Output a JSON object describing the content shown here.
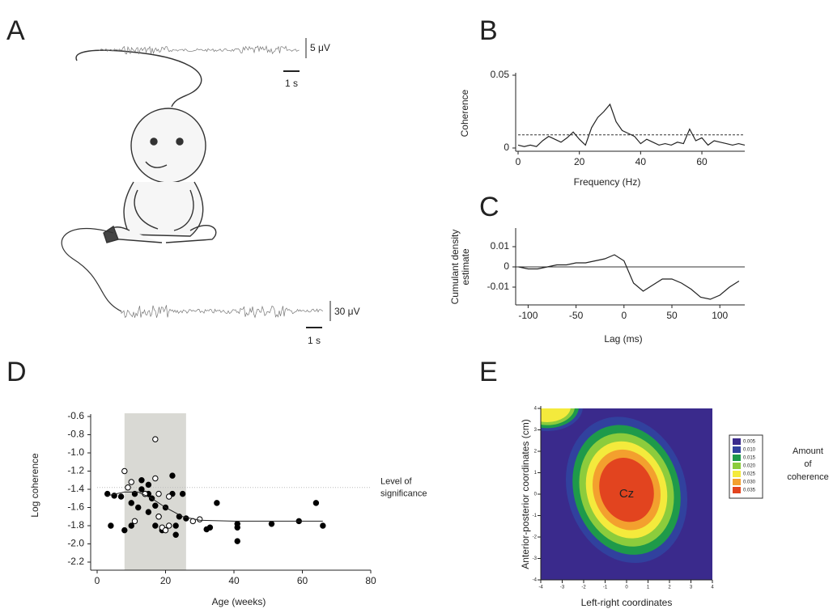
{
  "illustration": {
    "panel": "A",
    "scale_bars": [
      "5 μV",
      "1 s",
      "30 μV",
      "1 s"
    ]
  },
  "chart_data": [
    {
      "panel": "B",
      "type": "line",
      "xlabel": "Frequency (Hz)",
      "ylabel": "Coherence",
      "x": [
        0,
        2,
        4,
        6,
        8,
        10,
        12,
        14,
        16,
        18,
        20,
        22,
        24,
        26,
        28,
        30,
        32,
        34,
        36,
        38,
        40,
        42,
        44,
        46,
        48,
        50,
        52,
        54,
        56,
        58,
        60,
        62,
        64,
        66,
        68,
        70,
        72,
        74
      ],
      "series": [
        {
          "color": "#222222",
          "values": [
            0.002,
            0.001,
            0.002,
            0.001,
            0.005,
            0.008,
            0.006,
            0.004,
            0.007,
            0.011,
            0.006,
            0.002,
            0.014,
            0.021,
            0.025,
            0.03,
            0.018,
            0.012,
            0.01,
            0.008,
            0.003,
            0.006,
            0.004,
            0.002,
            0.003,
            0.002,
            0.004,
            0.003,
            0.013,
            0.005,
            0.007,
            0.002,
            0.005,
            0.004,
            0.003,
            0.002,
            0.003,
            0.002
          ]
        }
      ],
      "significance": 0.009,
      "xlim": [
        0,
        74
      ],
      "ylim": [
        0,
        0.05
      ],
      "xticks": [
        0,
        20,
        40,
        60
      ],
      "yticks": [
        0,
        0.05
      ]
    },
    {
      "panel": "C",
      "type": "line",
      "xlabel": "Lag (ms)",
      "ylabel": [
        "Cumulant density",
        "estimate"
      ],
      "x": [
        -110,
        -100,
        -90,
        -80,
        -70,
        -60,
        -50,
        -40,
        -30,
        -20,
        -10,
        0,
        10,
        20,
        30,
        40,
        50,
        60,
        70,
        80,
        90,
        100,
        110,
        120
      ],
      "series": [
        {
          "color": "#222222",
          "values": [
            0,
            -0.001,
            -0.001,
            0,
            0.001,
            0.001,
            0.002,
            0.002,
            0.003,
            0.004,
            0.006,
            0.003,
            -0.008,
            -0.012,
            -0.009,
            -0.006,
            -0.006,
            -0.008,
            -0.011,
            -0.015,
            -0.016,
            -0.014,
            -0.01,
            -0.007
          ]
        }
      ],
      "hline": 0,
      "xlim": [
        -113,
        126
      ],
      "ylim": [
        -0.018,
        0.018
      ],
      "xticks": [
        -100,
        -50,
        0,
        50,
        100
      ],
      "yticks": [
        0.01,
        0,
        -0.01
      ]
    },
    {
      "panel": "D",
      "type": "scatter",
      "xlabel": "Age (weeks)",
      "ylabel": "Log coherence",
      "series": [
        {
          "marker": "filled",
          "color": "#000000",
          "x": [
            3,
            4,
            5,
            7,
            8,
            10,
            10,
            11,
            12,
            13,
            13,
            14,
            15,
            15,
            15,
            16,
            17,
            17,
            18,
            19,
            20,
            22,
            22,
            23,
            23,
            24,
            25,
            26,
            32,
            33,
            35,
            41,
            41,
            41,
            51,
            59,
            64,
            66
          ],
          "y": [
            -1.45,
            -1.8,
            -1.47,
            -1.48,
            -1.85,
            -1.8,
            -1.55,
            -1.45,
            -1.6,
            -1.4,
            -1.3,
            -1.45,
            -1.35,
            -1.45,
            -1.65,
            -1.5,
            -1.58,
            -1.8,
            -1.7,
            -1.85,
            -1.6,
            -1.25,
            -1.45,
            -1.8,
            -1.9,
            -1.7,
            -1.45,
            -1.72,
            -1.84,
            -1.82,
            -1.55,
            -1.78,
            -1.82,
            -1.97,
            -1.78,
            -1.75,
            -1.55,
            -1.8
          ]
        },
        {
          "marker": "open",
          "color": "#000000",
          "x": [
            8,
            9,
            10,
            11,
            14,
            17,
            17,
            18,
            18,
            19,
            20,
            21,
            21,
            28,
            30
          ],
          "y": [
            -1.2,
            -1.38,
            -1.32,
            -1.75,
            -1.45,
            -0.85,
            -1.28,
            -1.45,
            -1.7,
            -1.82,
            -1.85,
            -1.8,
            -1.48,
            -1.75,
            -1.73
          ]
        }
      ],
      "fit": {
        "x": [
          3,
          8,
          12,
          16,
          20,
          25,
          30,
          40,
          66
        ],
        "y": [
          -1.47,
          -1.43,
          -1.43,
          -1.5,
          -1.6,
          -1.7,
          -1.74,
          -1.75,
          -1.75
        ]
      },
      "band": [
        8,
        26
      ],
      "significance": {
        "value": -1.38,
        "label": [
          "Level of",
          "significance"
        ]
      },
      "xlim": [
        0,
        80
      ],
      "ylim": [
        -2.2,
        -0.6
      ],
      "xticks": [
        0,
        20,
        40,
        60,
        80
      ],
      "yticks": [
        -0.6,
        -0.8,
        {
          "value": -1,
          "label": "-1.0"
        },
        -1.2,
        -1.4,
        -1.6,
        -1.8,
        {
          "value": -2,
          "label": "-2.0"
        },
        -2.2
      ]
    },
    {
      "panel": "E",
      "type": "contour",
      "xlabel": "Left-right coordinates",
      "ylabel": "Anterior-posterior coordinates (cm)",
      "annotation": "Cz",
      "legend_title": [
        "Amount",
        "of",
        "coherence"
      ],
      "levels": [
        {
          "value": 0.005,
          "label": "0.005",
          "color": "#3a2a8c"
        },
        {
          "value": 0.01,
          "label": "0.010",
          "color": "#31419e"
        },
        {
          "value": 0.015,
          "label": "0.015",
          "color": "#1e9a4a"
        },
        {
          "value": 0.02,
          "label": "0.020",
          "color": "#8ccc3c"
        },
        {
          "value": 0.025,
          "label": "0.025",
          "color": "#f4ea3c"
        },
        {
          "value": 0.03,
          "label": "0.030",
          "color": "#f3a02e"
        },
        {
          "value": 0.035,
          "label": "0.035",
          "color": "#e2441f"
        }
      ],
      "xlim": [
        -4,
        4
      ],
      "ylim": [
        -4,
        4
      ],
      "xticks": [
        -4,
        -3,
        -2,
        -1,
        0,
        1,
        2,
        3,
        4
      ],
      "yticks": [
        -4,
        -3,
        -2,
        -1,
        0,
        1,
        2,
        3,
        4
      ]
    }
  ]
}
